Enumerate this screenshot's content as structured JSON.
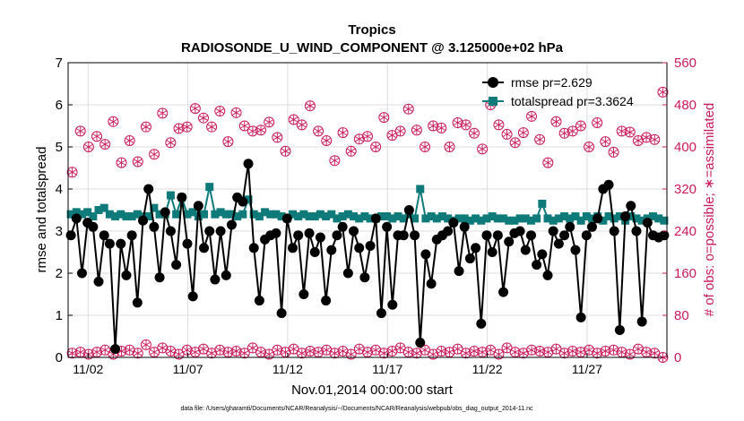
{
  "chart_data": {
    "type": "line",
    "title": "Tropics",
    "subtitle": "RADIOSONDE_U_WIND_COMPONENT @ 3.125000e+02 hPa",
    "xlabel": "Nov.01,2014 00:00:00 start",
    "ylabel": "rmse and totalspread",
    "y2label": "# of obs: o=possible; ∗=assimilated",
    "footnote": "data file: /Users/gharamti/Documents/NCAR/Reanalysis/~/Documents/NCAR/Reanalysis/webpub/obs_diag_output_2014-11.nc",
    "x_unit": "days since Nov.01,2014",
    "xlim": [
      0,
      30
    ],
    "ylim": [
      0,
      7
    ],
    "y2lim": [
      0,
      560
    ],
    "x_tick_values": [
      1,
      6,
      11,
      16,
      21,
      26
    ],
    "x_tick_labels": [
      "11/02",
      "11/07",
      "11/12",
      "11/17",
      "11/22",
      "11/27"
    ],
    "y_ticks": [
      "0",
      "1",
      "2",
      "3",
      "4",
      "5",
      "6",
      "7"
    ],
    "y2_ticks": [
      "0",
      "80",
      "160",
      "240",
      "320",
      "400",
      "480",
      "560"
    ],
    "legend_position": "top-right",
    "grid": true,
    "colors": {
      "rmse": "#000000",
      "totalspread": "#0f7a7a",
      "obs": "#c8195a"
    },
    "series": [
      {
        "name": "rmse pr=2.629",
        "axis": "left",
        "values": [
          2.9,
          3.3,
          2.0,
          3.2,
          3.1,
          1.8,
          2.9,
          2.7,
          0.2,
          2.7,
          1.95,
          2.9,
          1.3,
          3.25,
          4.0,
          3.1,
          1.9,
          3.45,
          3.0,
          2.2,
          3.8,
          2.7,
          1.45,
          3.6,
          2.6,
          3.0,
          1.85,
          3.0,
          1.95,
          3.15,
          3.8,
          3.7,
          4.6,
          2.6,
          1.35,
          2.8,
          2.9,
          2.95,
          1.05,
          3.3,
          2.6,
          2.9,
          1.5,
          2.95,
          2.5,
          2.85,
          1.35,
          2.55,
          2.9,
          3.1,
          2.0,
          3.0,
          2.6,
          1.9,
          2.65,
          3.3,
          1.05,
          3.1,
          1.25,
          2.9,
          2.9,
          3.5,
          2.9,
          0.35,
          2.45,
          1.75,
          2.8,
          2.9,
          3.0,
          3.2,
          2.05,
          3.1,
          2.35,
          2.6,
          0.8,
          2.9,
          2.5,
          2.9,
          1.55,
          2.75,
          2.95,
          3.0,
          2.55,
          2.9,
          2.2,
          2.45,
          1.95,
          3.0,
          2.7,
          2.9,
          3.1,
          2.55,
          0.95,
          2.9,
          3.1,
          3.3,
          4.0,
          4.1,
          3.0,
          0.65,
          3.35,
          3.6,
          3.0,
          0.85,
          3.2,
          2.9,
          2.85,
          2.9
        ]
      },
      {
        "name": "totalspread pr=3.3624",
        "axis": "left",
        "values": [
          3.4,
          3.45,
          3.4,
          3.45,
          3.35,
          3.5,
          3.55,
          3.4,
          3.35,
          3.4,
          3.35,
          3.35,
          3.4,
          3.35,
          3.35,
          3.55,
          3.4,
          3.4,
          3.85,
          3.4,
          3.8,
          3.4,
          3.45,
          3.35,
          3.4,
          4.05,
          3.4,
          3.45,
          3.4,
          3.4,
          3.35,
          3.4,
          3.75,
          3.4,
          3.35,
          3.45,
          3.4,
          3.4,
          3.35,
          3.3,
          3.4,
          3.35,
          3.4,
          3.35,
          3.35,
          3.4,
          3.35,
          3.4,
          3.3,
          3.35,
          3.4,
          3.35,
          3.3,
          3.35,
          3.3,
          3.3,
          3.35,
          3.35,
          3.3,
          3.35,
          3.3,
          3.4,
          3.3,
          4.0,
          3.3,
          3.35,
          3.3,
          3.35,
          3.3,
          3.25,
          3.3,
          3.3,
          3.25,
          3.3,
          3.25,
          3.3,
          3.35,
          3.3,
          3.3,
          3.25,
          3.25,
          3.3,
          3.3,
          3.25,
          3.3,
          3.65,
          3.3,
          3.25,
          3.3,
          3.35,
          3.3,
          3.35,
          3.25,
          3.35,
          3.3,
          3.35,
          3.25,
          3.35,
          3.3,
          3.35,
          3.25,
          3.35,
          3.3,
          3.25,
          3.3,
          3.35,
          3.3,
          3.25
        ]
      },
      {
        "name": "possible",
        "axis": "right",
        "marker": "circle",
        "values": [
          352,
          430,
          400,
          420,
          405,
          448,
          370,
          412,
          372,
          438,
          386,
          464,
          408,
          435,
          438,
          473,
          455,
          438,
          468,
          410,
          465,
          440,
          430,
          432,
          447,
          418,
          392,
          452,
          442,
          478,
          430,
          412,
          374,
          427,
          392,
          415,
          420,
          400,
          456,
          422,
          430,
          472,
          432,
          400,
          440,
          436,
          400,
          446,
          442,
          426,
          396,
          480,
          442,
          424,
          408,
          427,
          458,
          414,
          370,
          448,
          426,
          430,
          440,
          400,
          446,
          410,
          390,
          430,
          428,
          412,
          418,
          414,
          504
        ]
      },
      {
        "name": "assimilated",
        "axis": "right",
        "marker": "asterisk",
        "values": [
          8,
          10,
          6,
          10,
          14,
          6,
          12,
          14,
          8,
          24,
          10,
          18,
          12,
          6,
          14,
          10,
          16,
          8,
          14,
          10,
          12,
          8,
          18,
          10,
          6,
          14,
          10,
          16,
          8,
          12,
          10,
          14,
          8,
          12,
          6,
          16,
          10,
          14,
          8,
          12,
          18,
          10,
          8,
          14,
          6,
          12,
          10,
          16,
          8,
          12,
          10,
          14,
          6,
          18,
          10,
          8,
          14,
          12,
          10,
          16,
          8,
          12,
          10,
          14,
          8,
          12,
          14,
          10,
          6,
          16,
          10,
          8,
          0
        ]
      }
    ]
  }
}
